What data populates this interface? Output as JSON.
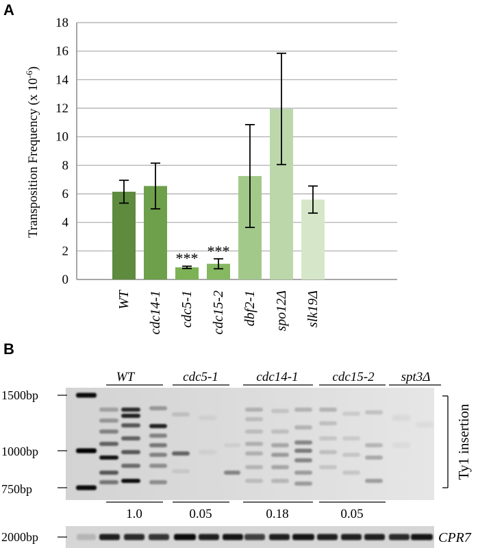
{
  "panel_a": {
    "letter": "A",
    "chart_data": {
      "type": "bar",
      "ylabel": "Transposition Frequency (x 10",
      "ylabel_sup": "-6",
      "ylabel_end": ")",
      "ylim": [
        0,
        18
      ],
      "yticks": [
        0,
        2,
        4,
        6,
        8,
        10,
        12,
        14,
        16,
        18
      ],
      "grid": true,
      "categories": [
        "WT",
        "cdc14-1",
        "cdc5-1",
        "cdc15-2",
        "dbf2-1",
        "spo12Δ",
        "slk19Δ"
      ],
      "values": [
        6.15,
        6.55,
        0.85,
        1.1,
        7.25,
        11.95,
        5.6
      ],
      "errors": [
        0.8,
        1.6,
        0.08,
        0.35,
        3.6,
        3.9,
        0.95
      ],
      "colors": [
        "#5e8b3e",
        "#6e9f4b",
        "#7cb155",
        "#86b862",
        "#a3c98a",
        "#bcd7aa",
        "#d5e7c8"
      ],
      "annotations": [
        "",
        "",
        "***",
        "***",
        "",
        "",
        ""
      ]
    }
  },
  "panel_b": {
    "letter": "B",
    "groups": [
      {
        "label": "WT",
        "ratio": "1.0"
      },
      {
        "label": "cdc5-1",
        "ratio": "0.05"
      },
      {
        "label": "cdc14-1",
        "ratio": "0.18"
      },
      {
        "label": "cdc15-2",
        "ratio": "0.05"
      },
      {
        "label": "spt3Δ",
        "ratio": ""
      }
    ],
    "markers": [
      "1500bp",
      "1000bp",
      "750bp"
    ],
    "bracket_label": "Ty1 insertion",
    "control_marker": "2000bp",
    "control_label": "CPR7"
  }
}
